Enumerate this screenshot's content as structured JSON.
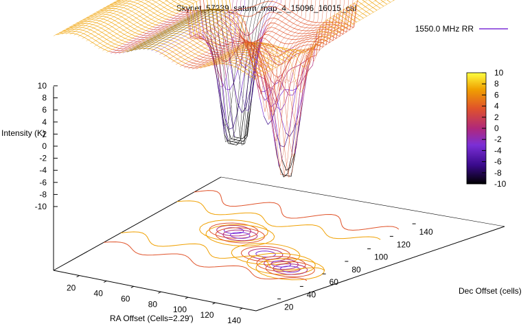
{
  "chart_data": {
    "type": "surface3d",
    "title": "Skynet_57239_saturn_map_4_15096_16015_cal",
    "legend": {
      "series": "1550.0 MHz RR",
      "position": "top-right",
      "color": "#7b2fd6"
    },
    "xlabel": "RA Offset (Cells=2.29')",
    "ylabel": "Dec Offset (cells)",
    "zlabel": "Intensity (K)",
    "x_ticks": [
      "20",
      "40",
      "60",
      "80",
      "100",
      "120",
      "140"
    ],
    "y_ticks": [
      "20",
      "40",
      "60",
      "80",
      "100",
      "120",
      "140"
    ],
    "z_ticks": [
      "10",
      "8",
      "6",
      "4",
      "2",
      "0",
      "-2",
      "-4",
      "-6",
      "-8",
      "-10"
    ],
    "colorbar_ticks": [
      "10",
      "8",
      "6",
      "4",
      "2",
      "0",
      "-2",
      "-4",
      "-6",
      "-8",
      "-10"
    ],
    "xlim": [
      1,
      150
    ],
    "ylim": [
      1,
      150
    ],
    "zlim": [
      -10,
      10
    ],
    "cblim": [
      -10,
      10
    ],
    "baseline_intensity": 5.5,
    "contours": true,
    "colormap": [
      "#000000",
      "#3a0a8c",
      "#7b2fd6",
      "#b0287a",
      "#e0532a",
      "#f0a000",
      "#ffff40"
    ],
    "dips": [
      {
        "ra": 60,
        "dec": 90,
        "depth_k": -10
      },
      {
        "ra": 68,
        "dec": 86,
        "depth_k": -7
      },
      {
        "ra": 100,
        "dec": 70,
        "depth_k": -4
      },
      {
        "ra": 118,
        "dec": 62,
        "depth_k": -8
      },
      {
        "ra": 128,
        "dec": 58,
        "depth_k": -9
      }
    ]
  }
}
